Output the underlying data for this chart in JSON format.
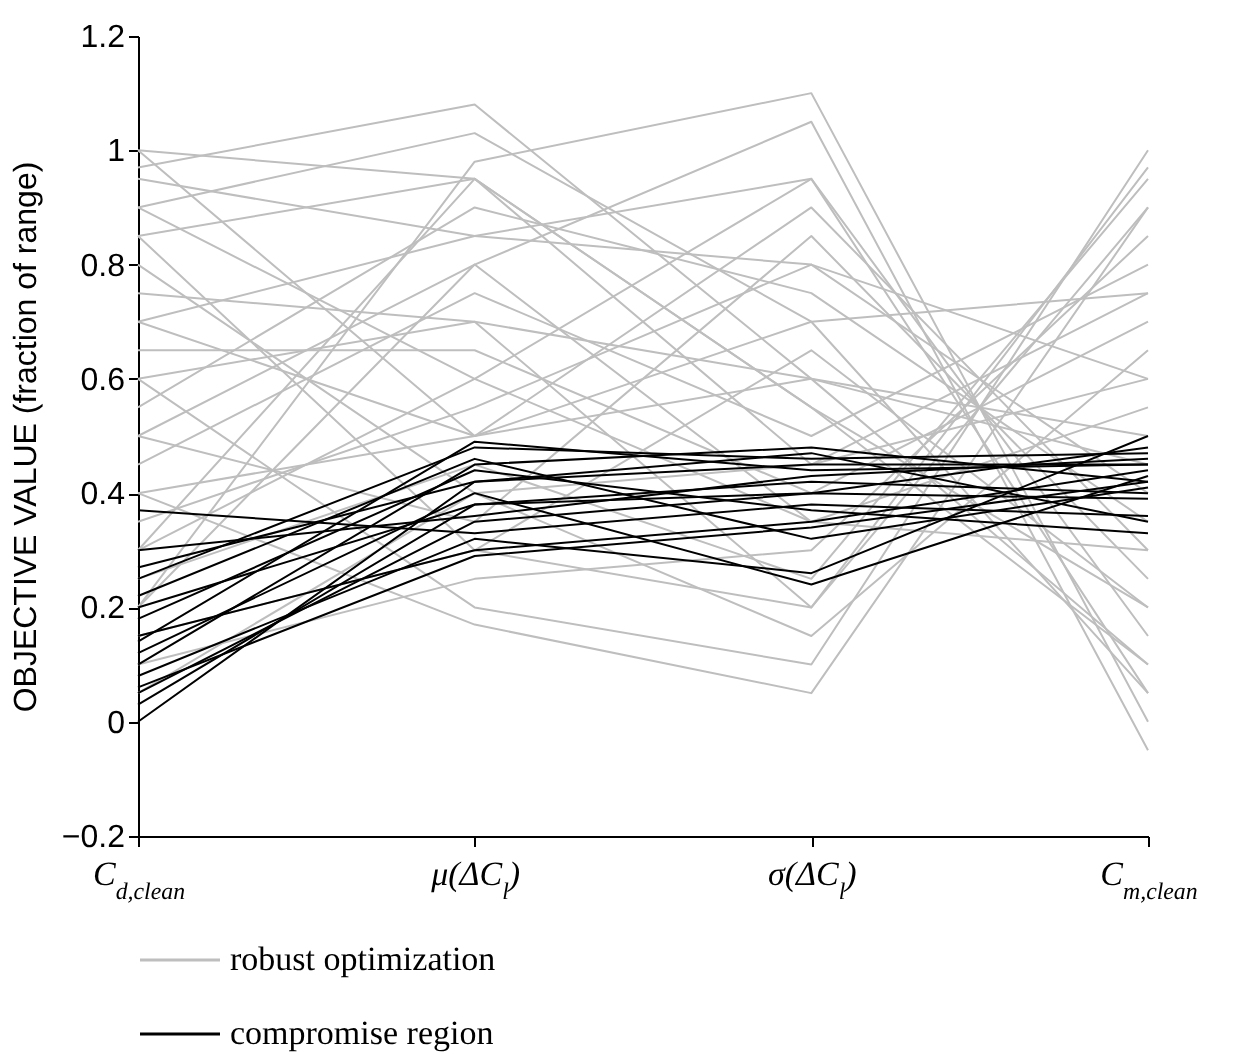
{
  "chart_data": {
    "type": "line",
    "ylabel": "OBJECTIVE VALUE (fraction of range)",
    "categories": [
      "C$_{d,clean}$",
      "μ(ΔC$_{l}$)",
      "σ(ΔC$_{l}$)",
      "C$_{m,clean}$"
    ],
    "ylim": [
      -0.2,
      1.2
    ],
    "yticks": [
      -0.2,
      0,
      0.2,
      0.4,
      0.6,
      0.8,
      1,
      1.2
    ],
    "grid": false,
    "legend": "bottom",
    "series": [
      {
        "name": "robust optimization",
        "color": "#bebebe",
        "values": [
          1.0,
          0.95,
          0.55,
          0.2
        ]
      },
      {
        "color": "#bebebe",
        "values": [
          0.97,
          1.08,
          0.6,
          0.1
        ]
      },
      {
        "color": "#bebebe",
        "values": [
          0.9,
          1.03,
          0.7,
          0.05
        ]
      },
      {
        "color": "#bebebe",
        "values": [
          0.2,
          0.98,
          1.1,
          0.0
        ]
      },
      {
        "color": "#bebebe",
        "values": [
          0.5,
          0.8,
          1.05,
          -0.05
        ]
      },
      {
        "color": "#bebebe",
        "values": [
          0.3,
          0.6,
          0.95,
          0.15
        ]
      },
      {
        "color": "#bebebe",
        "values": [
          0.7,
          0.5,
          0.9,
          0.3
        ]
      },
      {
        "color": "#bebebe",
        "values": [
          0.85,
          0.3,
          0.2,
          0.97
        ]
      },
      {
        "color": "#bebebe",
        "values": [
          0.6,
          0.2,
          0.1,
          1.0
        ]
      },
      {
        "color": "#bebebe",
        "values": [
          0.4,
          0.17,
          0.05,
          0.9
        ]
      },
      {
        "color": "#bebebe",
        "values": [
          0.1,
          0.25,
          0.3,
          0.85
        ]
      },
      {
        "color": "#bebebe",
        "values": [
          0.05,
          0.4,
          0.45,
          0.75
        ]
      },
      {
        "color": "#bebebe",
        "values": [
          0.75,
          0.7,
          0.6,
          0.5
        ]
      },
      {
        "color": "#bebebe",
        "values": [
          0.95,
          0.85,
          0.8,
          0.4
        ]
      },
      {
        "color": "#bebebe",
        "values": [
          0.55,
          0.9,
          0.75,
          0.35
        ]
      },
      {
        "color": "#bebebe",
        "values": [
          0.35,
          0.55,
          0.8,
          0.6
        ]
      },
      {
        "color": "#bebebe",
        "values": [
          0.65,
          0.65,
          0.4,
          0.7
        ]
      },
      {
        "color": "#bebebe",
        "values": [
          0.45,
          0.75,
          0.5,
          0.8
        ]
      },
      {
        "color": "#bebebe",
        "values": [
          0.25,
          0.45,
          0.25,
          0.95
        ]
      },
      {
        "color": "#bebebe",
        "values": [
          0.8,
          0.4,
          0.15,
          0.65
        ]
      },
      {
        "color": "#bebebe",
        "values": [
          0.9,
          0.6,
          0.35,
          0.55
        ]
      },
      {
        "color": "#bebebe",
        "values": [
          0.15,
          0.3,
          0.65,
          0.2
        ]
      },
      {
        "color": "#bebebe",
        "values": [
          0.3,
          0.95,
          0.55,
          0.1
        ]
      },
      {
        "color": "#bebebe",
        "values": [
          0.5,
          0.35,
          0.85,
          0.25
        ]
      },
      {
        "color": "#bebebe",
        "values": [
          0.7,
          0.85,
          0.95,
          0.05
        ]
      },
      {
        "color": "#bebebe",
        "values": [
          0.6,
          0.7,
          0.2,
          0.9
        ]
      },
      {
        "color": "#bebebe",
        "values": [
          0.4,
          0.5,
          0.6,
          0.45
        ]
      },
      {
        "color": "#bebebe",
        "values": [
          0.85,
          0.95,
          0.45,
          0.6
        ]
      },
      {
        "color": "#bebebe",
        "values": [
          0.2,
          0.8,
          0.35,
          0.3
        ]
      },
      {
        "color": "#bebebe",
        "values": [
          1.0,
          0.5,
          0.7,
          0.75
        ]
      },
      {
        "name": "compromise region",
        "color": "#000000",
        "values": [
          0.0,
          0.42,
          0.45,
          0.45
        ]
      },
      {
        "color": "#000000",
        "values": [
          0.05,
          0.35,
          0.4,
          0.48
        ]
      },
      {
        "color": "#000000",
        "values": [
          0.1,
          0.45,
          0.48,
          0.42
        ]
      },
      {
        "color": "#000000",
        "values": [
          0.15,
          0.3,
          0.35,
          0.44
        ]
      },
      {
        "color": "#000000",
        "values": [
          0.2,
          0.38,
          0.42,
          0.4
        ]
      },
      {
        "color": "#000000",
        "values": [
          0.25,
          0.48,
          0.46,
          0.47
        ]
      },
      {
        "color": "#000000",
        "values": [
          0.37,
          0.33,
          0.38,
          0.36
        ]
      },
      {
        "color": "#000000",
        "values": [
          0.12,
          0.4,
          0.24,
          0.43
        ]
      },
      {
        "color": "#000000",
        "values": [
          0.08,
          0.32,
          0.26,
          0.5
        ]
      },
      {
        "color": "#000000",
        "values": [
          0.18,
          0.44,
          0.37,
          0.33
        ]
      },
      {
        "color": "#000000",
        "values": [
          0.3,
          0.36,
          0.43,
          0.46
        ]
      },
      {
        "color": "#000000",
        "values": [
          0.22,
          0.46,
          0.32,
          0.41
        ]
      },
      {
        "color": "#000000",
        "values": [
          0.03,
          0.38,
          0.4,
          0.39
        ]
      },
      {
        "color": "#000000",
        "values": [
          0.27,
          0.42,
          0.47,
          0.35
        ]
      },
      {
        "color": "#000000",
        "values": [
          0.14,
          0.49,
          0.44,
          0.45
        ]
      },
      {
        "color": "#000000",
        "values": [
          0.06,
          0.29,
          0.34,
          0.42
        ]
      }
    ]
  }
}
